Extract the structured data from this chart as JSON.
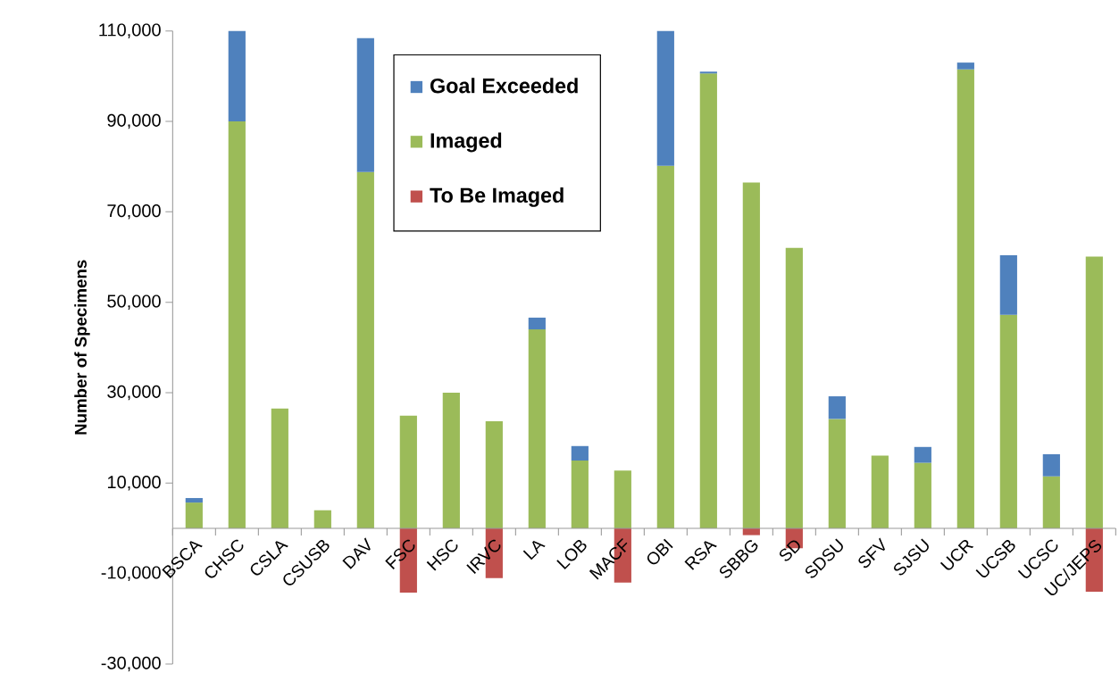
{
  "chart_data": {
    "type": "bar",
    "stacked": true,
    "ylabel": "Number of Specimens",
    "categories": [
      "BSCA",
      "CHSC",
      "CSLA",
      "CSUSB",
      "DAV",
      "FSC",
      "HSC",
      "IRVC",
      "LA",
      "LOB",
      "MACF",
      "OBI",
      "RSA",
      "SBBG",
      "SD",
      "SDSU",
      "SFV",
      "SJSU",
      "UCR",
      "UCSB",
      "UCSC",
      "UC/JEPS"
    ],
    "series": [
      {
        "name": "Imaged",
        "color": "#9bbb59",
        "values": [
          5700,
          90000,
          26500,
          4000,
          78800,
          24900,
          30000,
          23700,
          44000,
          15000,
          12800,
          80200,
          100600,
          76500,
          62000,
          24200,
          16100,
          14500,
          101500,
          47200,
          11500,
          60100
        ]
      },
      {
        "name": "Goal Exceeded",
        "color": "#4f81bd",
        "values": [
          1000,
          20000,
          null,
          null,
          29600,
          null,
          null,
          null,
          2600,
          3200,
          null,
          29800,
          400,
          null,
          null,
          5000,
          null,
          3500,
          1500,
          13200,
          4900,
          null
        ]
      },
      {
        "name": "To Be Imaged",
        "color": "#c0504d",
        "values": [
          null,
          null,
          null,
          null,
          null,
          -14200,
          null,
          -11000,
          null,
          null,
          -12000,
          null,
          null,
          -1500,
          -4400,
          null,
          null,
          null,
          null,
          null,
          null,
          -14000
        ]
      }
    ],
    "ylim": [
      -30000,
      110000
    ],
    "yticks": [
      {
        "value": -30000,
        "label": "-30,000"
      },
      {
        "value": -10000,
        "label": "-10,000"
      },
      {
        "value": 10000,
        "label": "10,000"
      },
      {
        "value": 30000,
        "label": "30,000"
      },
      {
        "value": 50000,
        "label": "50,000"
      },
      {
        "value": 70000,
        "label": "70,000"
      },
      {
        "value": 90000,
        "label": "90,000"
      },
      {
        "value": 110000,
        "label": "110,000"
      }
    ],
    "legend": "top",
    "grid": false
  }
}
